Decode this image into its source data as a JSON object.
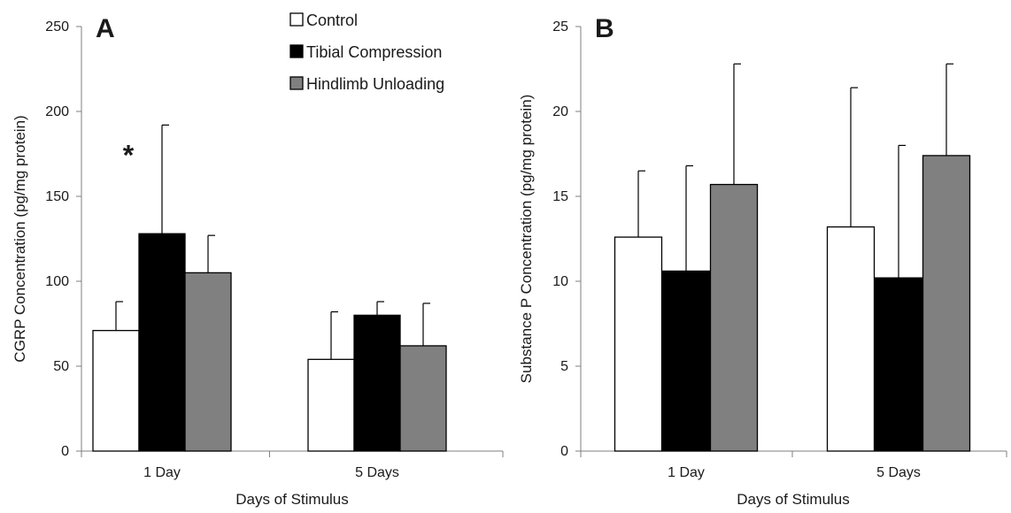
{
  "chart_data": [
    {
      "type": "bar",
      "panel_label": "A",
      "categories": [
        "1 Day",
        "5 Days"
      ],
      "series": [
        {
          "name": "Control",
          "color": "#ffffff",
          "values": [
            71,
            54
          ],
          "error": [
            17,
            28
          ]
        },
        {
          "name": "Tibial Compression",
          "color": "#000000",
          "values": [
            128,
            80
          ],
          "error": [
            64,
            8
          ]
        },
        {
          "name": "Hindlimb Unloading",
          "color": "#808080",
          "values": [
            105,
            62
          ],
          "error": [
            22,
            25
          ]
        }
      ],
      "xlabel": "Days of Stimulus",
      "ylabel": "CGRP Concentration (pg/mg protein)",
      "ylim": [
        0,
        250
      ],
      "yticks": [
        "0",
        "50",
        "100",
        "150",
        "200",
        "250"
      ],
      "grid": false,
      "legend": "top-center",
      "annotations": [
        {
          "text": "*",
          "category": "1 Day",
          "series": "Tibial Compression"
        }
      ]
    },
    {
      "type": "bar",
      "panel_label": "B",
      "categories": [
        "1 Day",
        "5 Days"
      ],
      "series": [
        {
          "name": "Control",
          "color": "#ffffff",
          "values": [
            12.6,
            13.2
          ],
          "error": [
            3.9,
            8.2
          ]
        },
        {
          "name": "Tibial Compression",
          "color": "#000000",
          "values": [
            10.6,
            10.2
          ],
          "error": [
            6.2,
            7.8
          ]
        },
        {
          "name": "Hindlimb Unloading",
          "color": "#808080",
          "values": [
            15.7,
            17.4
          ],
          "error": [
            7.1,
            5.4
          ]
        }
      ],
      "xlabel": "Days of Stimulus",
      "ylabel": "Substance P Concentration (pg/mg protein)",
      "ylim": [
        0,
        25
      ],
      "yticks": [
        "0",
        "5",
        "10",
        "15",
        "20",
        "25"
      ],
      "grid": false,
      "legend": "none"
    }
  ]
}
